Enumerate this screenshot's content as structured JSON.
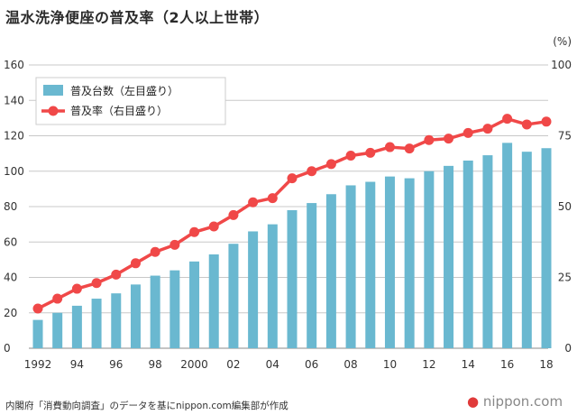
{
  "chart_data": {
    "type": "bar",
    "title": "温水洗浄便座の普及率（2人以上世帯）",
    "left_axis_unit": "",
    "right_axis_unit": "(%)",
    "categories": [
      "1992",
      "1993",
      "1994",
      "1995",
      "1996",
      "1997",
      "1998",
      "1999",
      "2000",
      "2001",
      "2002",
      "2003",
      "2004",
      "2005",
      "2006",
      "2007",
      "2008",
      "2009",
      "2010",
      "2011",
      "2012",
      "2013",
      "2014",
      "2015",
      "2016",
      "2017",
      "2018"
    ],
    "x_tick_labels": [
      "1992",
      "94",
      "96",
      "98",
      "2000",
      "02",
      "04",
      "06",
      "08",
      "10",
      "12",
      "14",
      "16",
      "18"
    ],
    "series": [
      {
        "name": "普及台数（左目盛り）",
        "type": "bar",
        "axis": "left",
        "color": "#6ab8d0",
        "values": [
          16,
          20,
          24,
          28,
          31,
          36,
          41,
          44,
          49,
          53,
          59,
          66,
          70,
          78,
          82,
          87,
          92,
          94,
          97,
          96,
          100,
          103,
          106,
          109,
          116,
          111,
          113
        ]
      },
      {
        "name": "普及率（右目盛り）",
        "type": "line",
        "axis": "right",
        "color": "#f04848",
        "values": [
          14,
          17.5,
          21,
          23,
          26,
          30,
          34,
          36.5,
          41,
          43,
          47,
          51.5,
          53,
          60,
          62.5,
          65,
          68,
          69,
          71,
          70.5,
          73.5,
          74,
          76,
          77.5,
          81,
          79,
          80
        ]
      }
    ],
    "left_ylim": [
      0,
      160
    ],
    "left_ticks": [
      "0",
      "20",
      "40",
      "60",
      "80",
      "100",
      "120",
      "140",
      "160"
    ],
    "right_ylim": [
      0,
      100
    ],
    "right_ticks": [
      "0",
      "25",
      "50",
      "75",
      "100"
    ],
    "legend_position": "top-left"
  },
  "source": "内閣府「消費動向調査」のデータを基にnippon.com編集部が作成",
  "logo": {
    "prefix": "●",
    "text": "nippon.com"
  }
}
